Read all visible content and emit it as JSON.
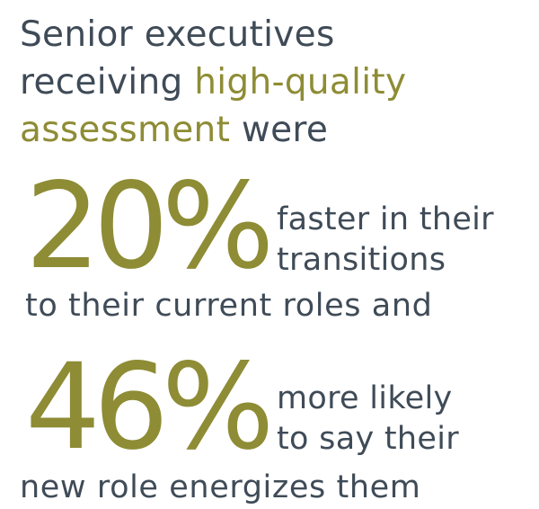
{
  "headline": {
    "line1": "Senior executives",
    "line2_lead": "receiving ",
    "line2_highlight": "high-quality",
    "line3_highlight": "assessment",
    "line3_tail": " were"
  },
  "stat1": {
    "value": "20%",
    "side_line1": "faster in their",
    "side_line2": "transitions",
    "tail": "to their current roles and"
  },
  "stat2": {
    "value": "46%",
    "side_line1": "more likely",
    "side_line2": "to say their",
    "tail": "new role energizes them"
  },
  "colors": {
    "text_dark": "#3f4b57",
    "accent_olive": "#8e8c35",
    "background": "#ffffff"
  }
}
